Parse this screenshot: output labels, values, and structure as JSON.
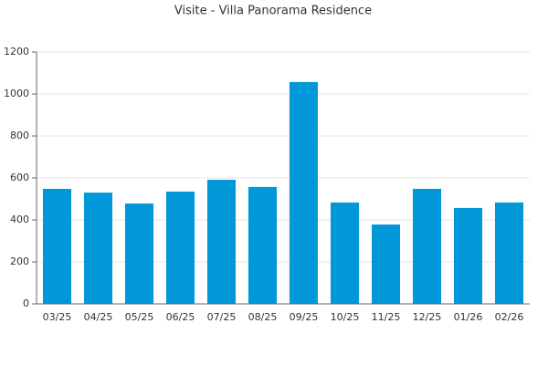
{
  "chart_data": {
    "type": "bar",
    "title": "Visite - Villa Panorama Residence",
    "categories": [
      "03/25",
      "04/25",
      "05/25",
      "06/25",
      "07/25",
      "08/25",
      "09/25",
      "10/25",
      "11/25",
      "12/25",
      "01/26",
      "02/26"
    ],
    "values": [
      548,
      530,
      478,
      535,
      591,
      557,
      1057,
      483,
      378,
      548,
      457,
      483
    ],
    "color": "#0098d8",
    "ylim": [
      0,
      1200
    ],
    "yticks": [
      0,
      200,
      400,
      600,
      800,
      1000,
      1200
    ],
    "grid": true
  }
}
